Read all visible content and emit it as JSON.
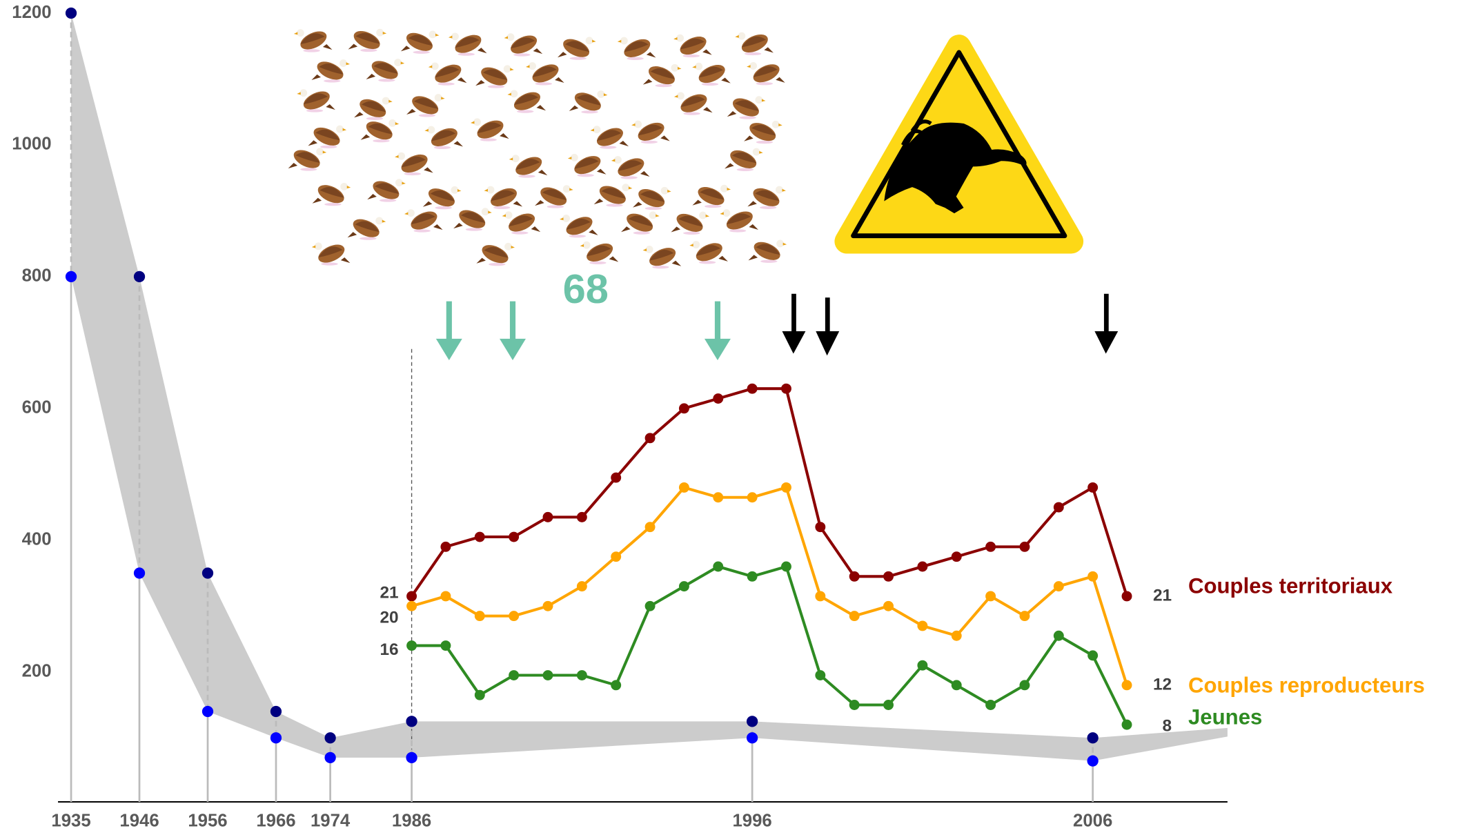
{
  "chart_data": {
    "type": "line",
    "ylim": [
      0,
      1200
    ],
    "yticks": [
      200,
      400,
      600,
      800,
      1000,
      1200
    ],
    "y2lim": [
      0,
      80
    ],
    "categories": [
      "1935",
      "1946",
      "1956",
      "1966",
      "1974",
      "1986",
      "1996",
      "2006",
      null
    ],
    "band_upper": [
      1200,
      800,
      350,
      140,
      100,
      125,
      125,
      100,
      115
    ],
    "band_lower": [
      800,
      350,
      140,
      100,
      70,
      70,
      100,
      65,
      102
    ],
    "band_color": "#cccccc",
    "upper_marker_color": "#000080",
    "lower_marker_color": "#0000ff",
    "x": [
      1986,
      1987,
      1988,
      1989,
      1990,
      1991,
      1992,
      1993,
      1994,
      1995,
      1996,
      1997,
      1998,
      1999,
      2000,
      2001,
      2002,
      2003,
      2004,
      2005,
      2006,
      2007
    ],
    "series": [
      {
        "name": "Couples territoriaux",
        "color": "#8b0000",
        "axis": "y2",
        "values": [
          21,
          26,
          27,
          27,
          29,
          29,
          33,
          37,
          40,
          41,
          42,
          42,
          28,
          23,
          23,
          24,
          25,
          26,
          26,
          30,
          32,
          21
        ]
      },
      {
        "name": "Couples reproducteurs",
        "color": "#ffa500",
        "axis": "y2",
        "values": [
          20,
          21,
          19,
          19,
          20,
          22,
          25,
          28,
          32,
          31,
          31,
          32,
          21,
          19,
          20,
          18,
          17,
          21,
          19,
          22,
          23,
          12
        ]
      },
      {
        "name": "Jeunes",
        "color": "#2e8b22",
        "axis": "y2",
        "values": [
          16,
          16,
          11,
          13,
          13,
          13,
          12,
          20,
          22,
          24,
          23,
          24,
          13,
          10,
          10,
          14,
          12,
          10,
          12,
          17,
          15,
          8
        ]
      }
    ],
    "annotation": "68"
  }
}
